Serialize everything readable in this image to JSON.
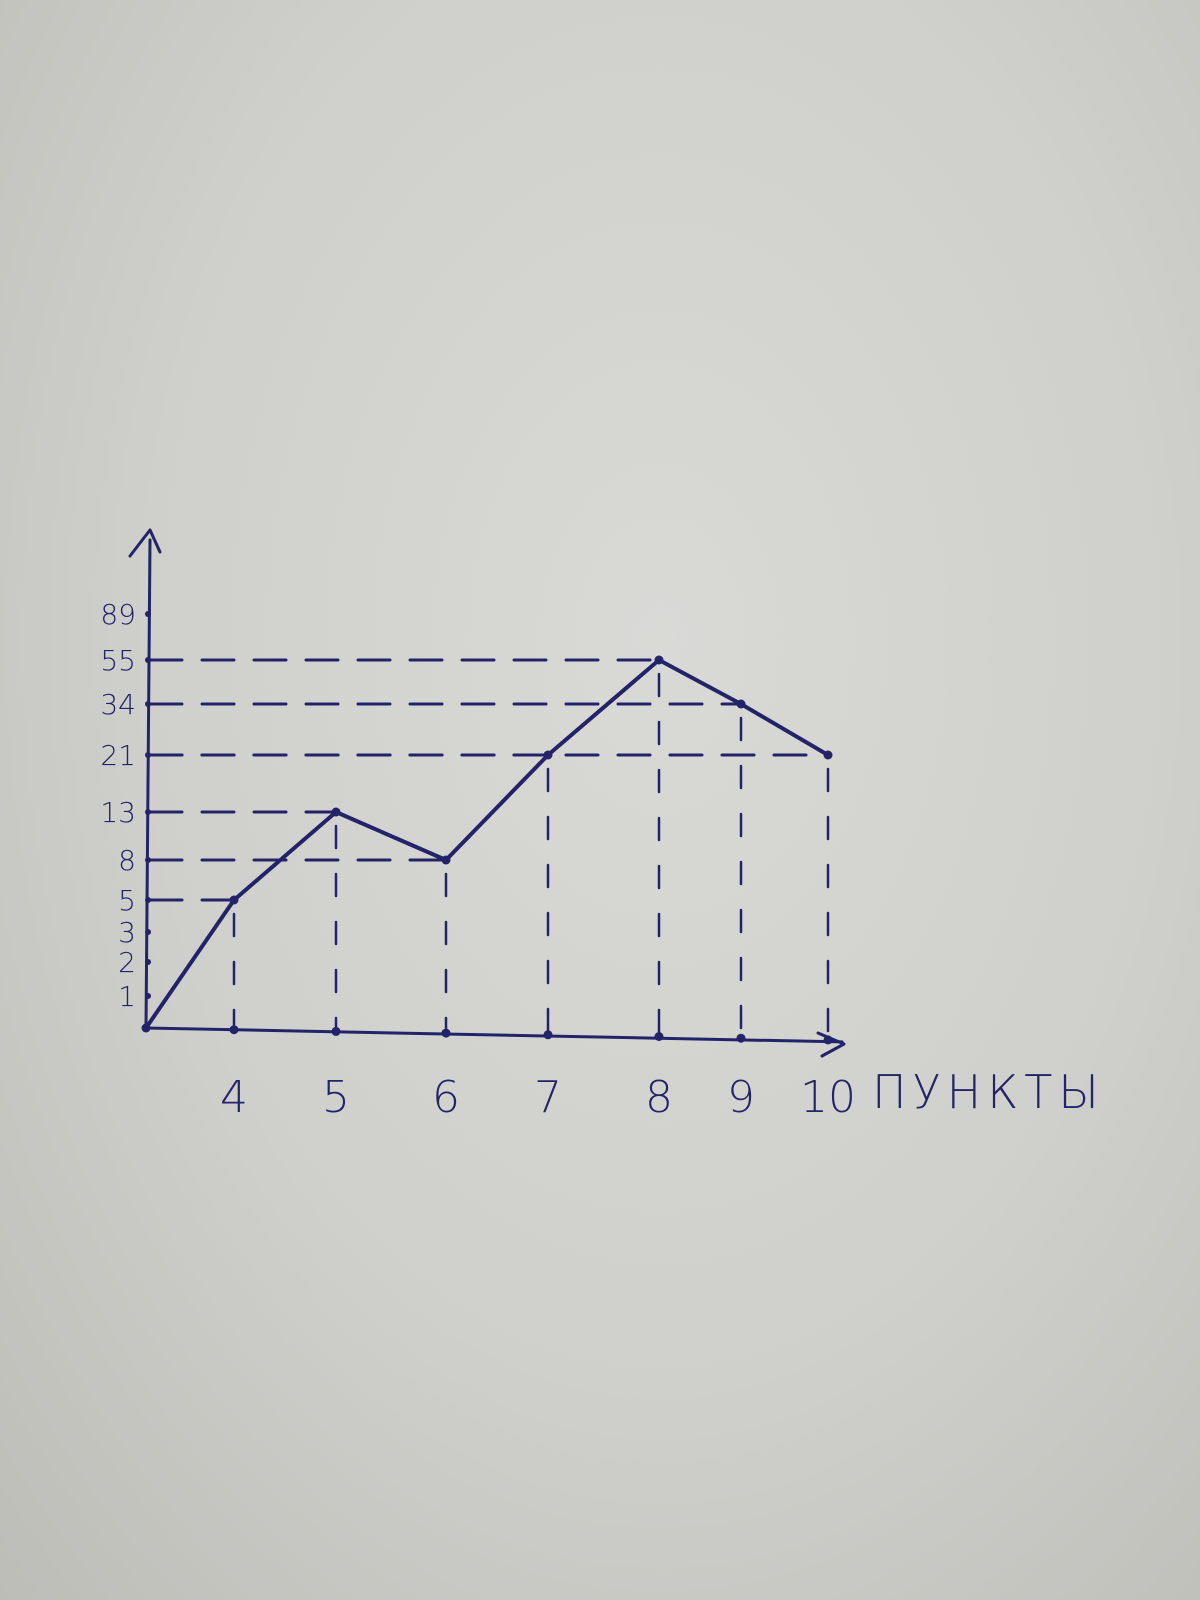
{
  "colors": {
    "ink": "#23236a",
    "paper": "#d4d4d0"
  },
  "chart_data": {
    "type": "line",
    "title": "",
    "xlabel": "ПУНКТЫ",
    "ylabel": "",
    "x": [
      3,
      4,
      5,
      6,
      7,
      8,
      9,
      10
    ],
    "x_tick_labels": [
      "4",
      "5",
      "6",
      "7",
      "8",
      "9",
      "10"
    ],
    "y_tick_labels": [
      "1",
      "2",
      "3",
      "5",
      "8",
      "13",
      "21",
      "34",
      "55",
      "89"
    ],
    "series": [
      {
        "values": [
          0,
          5,
          13,
          8,
          21,
          55,
          34,
          21
        ]
      }
    ],
    "guide_lines": "dashed projections from each point to both axes",
    "grid": false,
    "legend": "none"
  }
}
